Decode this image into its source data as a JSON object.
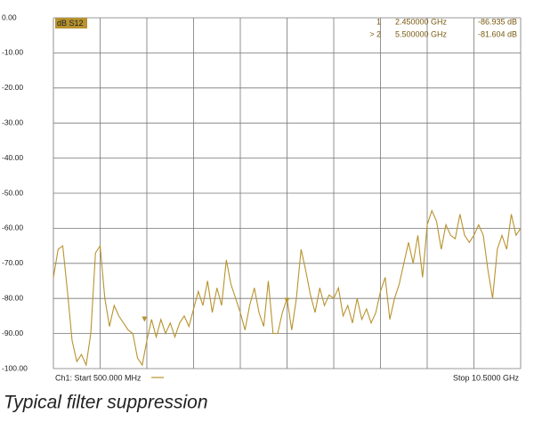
{
  "chart_data": {
    "type": "line",
    "caption": "Typical filter suppression",
    "start_label": "Ch1: Start 500.000 MHz",
    "stop_label": "Stop 10.5000 GHz",
    "x": [
      0.5,
      0.6,
      0.7,
      0.8,
      0.9,
      1.0,
      1.1,
      1.2,
      1.3,
      1.4,
      1.5,
      1.6,
      1.7,
      1.8,
      1.9,
      2.0,
      2.1,
      2.2,
      2.3,
      2.4,
      2.5,
      2.6,
      2.7,
      2.8,
      2.9,
      3.0,
      3.1,
      3.2,
      3.3,
      3.4,
      3.5,
      3.6,
      3.7,
      3.8,
      3.9,
      4.0,
      4.1,
      4.2,
      4.3,
      4.4,
      4.5,
      4.6,
      4.7,
      4.8,
      4.9,
      5.0,
      5.1,
      5.2,
      5.3,
      5.4,
      5.5,
      5.6,
      5.7,
      5.8,
      5.9,
      6.0,
      6.1,
      6.2,
      6.3,
      6.4,
      6.5,
      6.6,
      6.7,
      6.8,
      6.9,
      7.0,
      7.1,
      7.2,
      7.3,
      7.4,
      7.5,
      7.6,
      7.7,
      7.8,
      7.9,
      8.0,
      8.1,
      8.2,
      8.3,
      8.4,
      8.5,
      8.6,
      8.7,
      8.8,
      8.9,
      9.0,
      9.1,
      9.2,
      9.3,
      9.4,
      9.5,
      9.6,
      9.7,
      9.8,
      9.9,
      10.0,
      10.1,
      10.2,
      10.3,
      10.4,
      10.5
    ],
    "series": [
      {
        "name": "dB S12",
        "color": "#b8932e",
        "values": [
          -74,
          -66,
          -65,
          -78,
          -92,
          -98,
          -96,
          -99,
          -90,
          -67,
          -65,
          -80,
          -88,
          -82,
          -85,
          -87,
          -89,
          -90,
          -97,
          -99,
          -92,
          -86,
          -91,
          -86,
          -90,
          -87,
          -91,
          -87,
          -85,
          -88,
          -83,
          -78,
          -82,
          -75,
          -84,
          -77,
          -82,
          -69,
          -76,
          -80,
          -84,
          -89,
          -82,
          -77,
          -84,
          -88,
          -75,
          -90,
          -90,
          -84,
          -80,
          -89,
          -80,
          -66,
          -72,
          -79,
          -84,
          -77,
          -82,
          -79,
          -80,
          -77,
          -85,
          -82,
          -87,
          -80,
          -86,
          -83,
          -87,
          -84,
          -78,
          -74,
          -86,
          -80,
          -76,
          -70,
          -64,
          -70,
          -62,
          -74,
          -59,
          -55,
          -58,
          -66,
          -59,
          -62,
          -63,
          -56,
          -62,
          -64,
          -62,
          -59,
          -62,
          -72,
          -80,
          -66,
          -62,
          -66,
          -56,
          -62,
          -60
        ]
      }
    ],
    "markers": [
      {
        "label": "1",
        "x": 2.45,
        "x_label": "2.450000 GHz",
        "value": -86.935,
        "value_label": "-86.935 dB"
      },
      {
        "label": "> 2",
        "x": 5.5,
        "x_label": "5.500000 GHz",
        "value": -81.604,
        "value_label": "-81.604 dB"
      }
    ],
    "xlim": [
      0.5,
      10.5
    ],
    "xticks": [
      0.5,
      1.5,
      2.5,
      3.5,
      4.5,
      5.5,
      6.5,
      7.5,
      8.5,
      9.5,
      10.5
    ],
    "ylim": [
      -100,
      0
    ],
    "yticks": [
      {
        "value": 0,
        "label": "0.00"
      },
      {
        "value": -10,
        "label": "-10.00"
      },
      {
        "value": -20,
        "label": "-20.00"
      },
      {
        "value": -30,
        "label": "-30.00"
      },
      {
        "value": -40,
        "label": "-40.00"
      },
      {
        "value": -50,
        "label": "-50.00"
      },
      {
        "value": -60,
        "label": "-60.00"
      },
      {
        "value": -70,
        "label": "-70.00"
      },
      {
        "value": -80,
        "label": "-80.00"
      },
      {
        "value": -90,
        "label": "-90.00"
      },
      {
        "value": -100,
        "label": "-100.00"
      }
    ],
    "grid": true
  }
}
